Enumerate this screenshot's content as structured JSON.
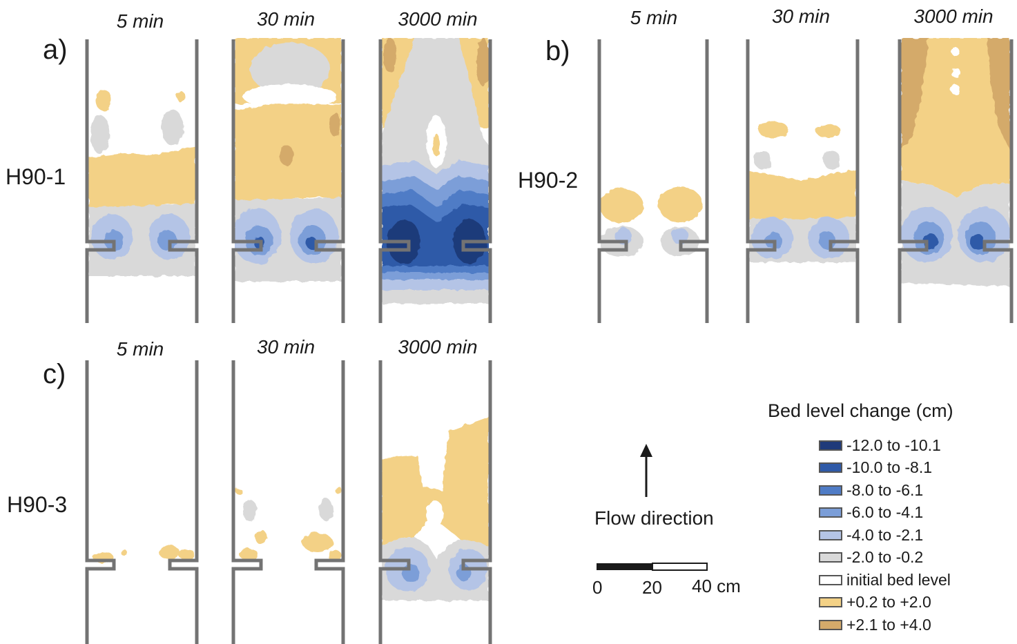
{
  "panels": [
    {
      "letter": "a)",
      "row_label": "H90-1",
      "times": [
        "5 min",
        "30 min",
        "3000 min"
      ]
    },
    {
      "letter": "b)",
      "row_label": "H90-2",
      "times": [
        "5 min",
        "30 min",
        "3000 min"
      ]
    },
    {
      "letter": "c)",
      "row_label": "H90-3",
      "times": [
        "5 min",
        "30 min",
        "3000 min"
      ]
    }
  ],
  "flow_direction": "Flow direction",
  "scale_bar": {
    "ticks": [
      "0",
      "20",
      "40 cm"
    ]
  },
  "legend": {
    "title": "Bed level change (cm)",
    "items": [
      {
        "label": "-12.0 to -10.1",
        "color": "#1f3a7a"
      },
      {
        "label": "-10.0 to -8.1",
        "color": "#2f5aa8"
      },
      {
        "label": "-8.0 to -6.1",
        "color": "#4f7cc6"
      },
      {
        "label": "-6.0 to -4.1",
        "color": "#7b9ed8"
      },
      {
        "label": "-4.0 to -2.1",
        "color": "#b4c4e6"
      },
      {
        "label": "-2.0 to -0.2",
        "color": "#d9d9d9"
      },
      {
        "label": "initial bed level",
        "color": "#ffffff"
      },
      {
        "label": "+0.2 to +2.0",
        "color": "#f3d186"
      },
      {
        "label": "+2.1 to +4.0",
        "color": "#d4aa6a"
      }
    ]
  }
}
